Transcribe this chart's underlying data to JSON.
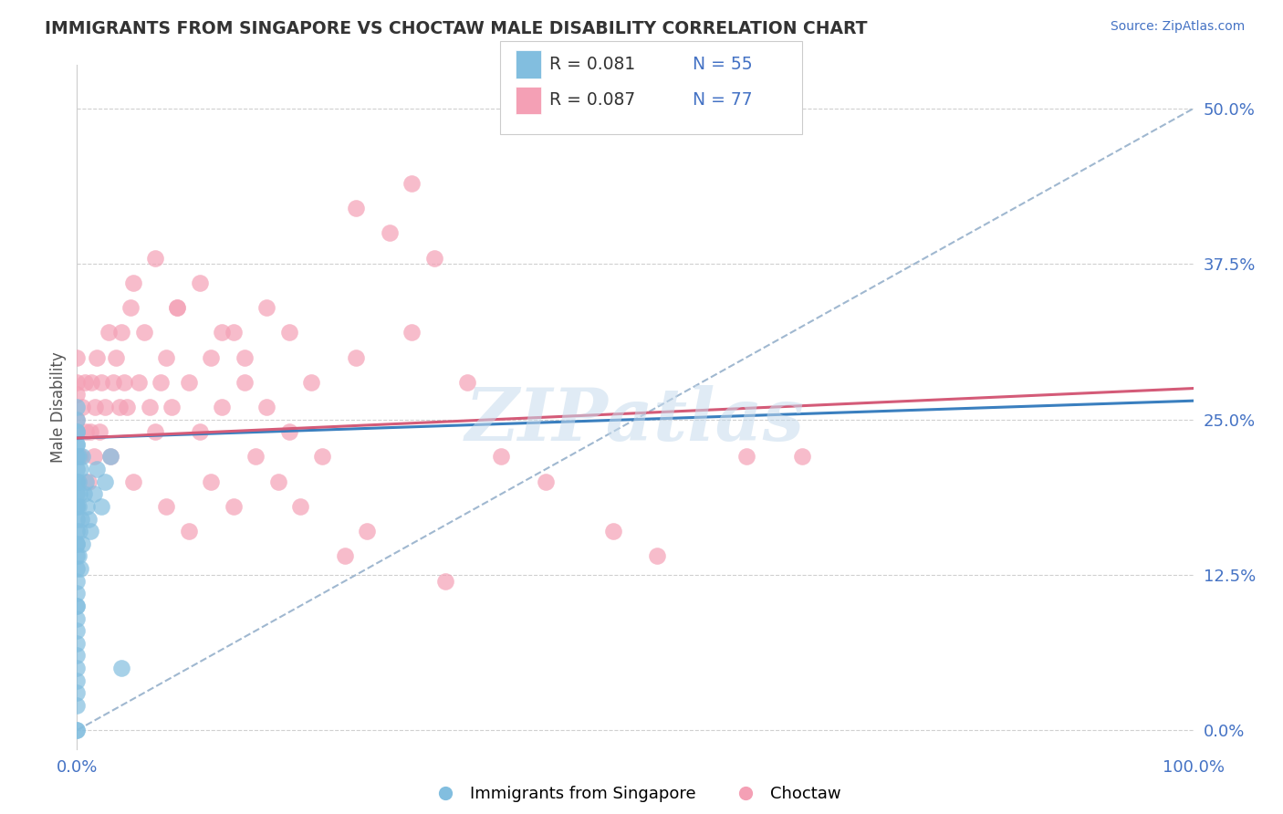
{
  "title": "IMMIGRANTS FROM SINGAPORE VS CHOCTAW MALE DISABILITY CORRELATION CHART",
  "source": "Source: ZipAtlas.com",
  "ylabel": "Male Disability",
  "watermark": "ZIPatlas",
  "xlim": [
    0.0,
    1.0
  ],
  "ylim": [
    0.0,
    0.52
  ],
  "xtick_labels": [
    "0.0%",
    "100.0%"
  ],
  "ytick_labels": [
    "0.0%",
    "12.5%",
    "25.0%",
    "37.5%",
    "50.0%"
  ],
  "ytick_values": [
    0.0,
    0.125,
    0.25,
    0.375,
    0.5
  ],
  "legend_r1": "R = 0.081",
  "legend_n1": "N = 55",
  "legend_r2": "R = 0.087",
  "legend_n2": "N = 77",
  "color_blue": "#82bedf",
  "color_pink": "#f4a0b5",
  "color_blue_line": "#3a7fbf",
  "color_pink_line": "#d45b78",
  "color_dashed": "#a0b8d0",
  "background_color": "#ffffff",
  "blue_scatter_x": [
    0.0,
    0.0,
    0.0,
    0.0,
    0.0,
    0.0,
    0.0,
    0.0,
    0.0,
    0.0,
    0.0,
    0.0,
    0.0,
    0.0,
    0.0,
    0.0,
    0.0,
    0.0,
    0.0,
    0.0,
    0.0,
    0.0,
    0.0,
    0.0,
    0.0,
    0.0,
    0.0,
    0.0,
    0.0,
    0.0,
    0.0,
    0.0,
    0.0,
    0.001,
    0.001,
    0.001,
    0.001,
    0.002,
    0.002,
    0.003,
    0.003,
    0.004,
    0.005,
    0.005,
    0.006,
    0.008,
    0.009,
    0.01,
    0.012,
    0.015,
    0.018,
    0.022,
    0.025,
    0.03,
    0.04
  ],
  "blue_scatter_y": [
    0.0,
    0.0,
    0.02,
    0.03,
    0.04,
    0.05,
    0.06,
    0.07,
    0.08,
    0.09,
    0.1,
    0.1,
    0.11,
    0.12,
    0.13,
    0.14,
    0.15,
    0.15,
    0.16,
    0.17,
    0.18,
    0.18,
    0.19,
    0.2,
    0.2,
    0.21,
    0.22,
    0.23,
    0.23,
    0.24,
    0.24,
    0.25,
    0.26,
    0.14,
    0.18,
    0.2,
    0.22,
    0.16,
    0.19,
    0.13,
    0.21,
    0.17,
    0.15,
    0.22,
    0.19,
    0.2,
    0.18,
    0.17,
    0.16,
    0.19,
    0.21,
    0.18,
    0.2,
    0.22,
    0.05
  ],
  "pink_scatter_x": [
    0.0,
    0.0,
    0.0,
    0.0,
    0.0,
    0.003,
    0.005,
    0.007,
    0.008,
    0.01,
    0.012,
    0.013,
    0.015,
    0.016,
    0.018,
    0.02,
    0.022,
    0.025,
    0.028,
    0.03,
    0.032,
    0.035,
    0.038,
    0.04,
    0.042,
    0.045,
    0.048,
    0.05,
    0.055,
    0.06,
    0.065,
    0.07,
    0.075,
    0.08,
    0.085,
    0.09,
    0.1,
    0.11,
    0.12,
    0.13,
    0.14,
    0.15,
    0.17,
    0.19,
    0.21,
    0.25,
    0.3,
    0.35,
    0.3,
    0.25,
    0.28,
    0.32,
    0.08,
    0.1,
    0.12,
    0.14,
    0.16,
    0.18,
    0.2,
    0.22,
    0.05,
    0.07,
    0.09,
    0.11,
    0.13,
    0.15,
    0.17,
    0.19,
    0.24,
    0.26,
    0.33,
    0.38,
    0.42,
    0.48,
    0.52,
    0.6,
    0.65
  ],
  "pink_scatter_y": [
    0.24,
    0.25,
    0.27,
    0.28,
    0.3,
    0.22,
    0.26,
    0.28,
    0.24,
    0.2,
    0.24,
    0.28,
    0.22,
    0.26,
    0.3,
    0.24,
    0.28,
    0.26,
    0.32,
    0.22,
    0.28,
    0.3,
    0.26,
    0.32,
    0.28,
    0.26,
    0.34,
    0.2,
    0.28,
    0.32,
    0.26,
    0.24,
    0.28,
    0.3,
    0.26,
    0.34,
    0.28,
    0.24,
    0.3,
    0.26,
    0.32,
    0.28,
    0.26,
    0.24,
    0.28,
    0.3,
    0.32,
    0.28,
    0.44,
    0.42,
    0.4,
    0.38,
    0.18,
    0.16,
    0.2,
    0.18,
    0.22,
    0.2,
    0.18,
    0.22,
    0.36,
    0.38,
    0.34,
    0.36,
    0.32,
    0.3,
    0.34,
    0.32,
    0.14,
    0.16,
    0.12,
    0.22,
    0.2,
    0.16,
    0.14,
    0.22,
    0.22
  ]
}
